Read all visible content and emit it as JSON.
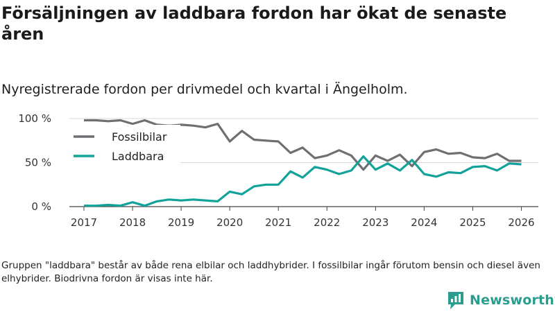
{
  "title": "Försäljningen av laddbara fordon har ökat de senaste åren",
  "subtitle": "Nyregistrerade fordon per drivmedel och kvartal i Ängelholm.",
  "footnote": "Gruppen \"laddbara\" består av både rena elbilar och laddhybrider. I fossilbilar ingår förutom bensin och diesel även elhybrider. Biodrivna fordon är visas inte här.",
  "brand": {
    "name": "Newsworthy",
    "color": "#2a9d8f"
  },
  "chart_data": {
    "type": "line",
    "title": "Försäljningen av laddbara fordon har ökat de senaste åren",
    "xlabel": "",
    "ylabel": "",
    "x_range": [
      2016.7,
      2026.35
    ],
    "ylim": [
      0,
      100
    ],
    "y_ticks": [
      {
        "value": 0,
        "label": "0 %"
      },
      {
        "value": 50,
        "label": "50 %"
      },
      {
        "value": 100,
        "label": "100 %"
      }
    ],
    "x_ticks": [
      {
        "value": 2017,
        "label": "2017"
      },
      {
        "value": 2018,
        "label": "2018"
      },
      {
        "value": 2019,
        "label": "2019"
      },
      {
        "value": 2020,
        "label": "2020"
      },
      {
        "value": 2021,
        "label": "2021"
      },
      {
        "value": 2022,
        "label": "2022"
      },
      {
        "value": 2023,
        "label": "2023"
      },
      {
        "value": 2024,
        "label": "2024"
      },
      {
        "value": 2025,
        "label": "2025"
      },
      {
        "value": 2026,
        "label": "2026"
      }
    ],
    "grid": "horizontal",
    "legend_position": "top-left",
    "x": [
      2017.0,
      2017.25,
      2017.5,
      2017.75,
      2018.0,
      2018.25,
      2018.5,
      2018.75,
      2019.0,
      2019.25,
      2019.5,
      2019.75,
      2020.0,
      2020.25,
      2020.5,
      2020.75,
      2021.0,
      2021.25,
      2021.5,
      2021.75,
      2022.0,
      2022.25,
      2022.5,
      2022.75,
      2023.0,
      2023.25,
      2023.5,
      2023.75,
      2024.0,
      2024.25,
      2024.5,
      2024.75,
      2025.0,
      2025.25,
      2025.5,
      2025.75,
      2026.0
    ],
    "series": [
      {
        "name": "Fossilbilar",
        "color": "#6e6e73",
        "values": [
          98,
          98,
          97,
          98,
          94,
          98,
          93,
          92,
          93,
          92,
          90,
          94,
          74,
          86,
          76,
          75,
          74,
          61,
          67,
          55,
          58,
          64,
          58,
          42,
          58,
          52,
          59,
          46,
          62,
          65,
          60,
          61,
          56,
          55,
          60,
          52,
          52
        ]
      },
      {
        "name": "Laddbara",
        "color": "#11a29a",
        "values": [
          1,
          1,
          2,
          1,
          5,
          1,
          6,
          8,
          7,
          8,
          7,
          6,
          17,
          14,
          23,
          25,
          25,
          40,
          33,
          45,
          42,
          37,
          41,
          57,
          42,
          49,
          41,
          53,
          37,
          34,
          39,
          38,
          45,
          46,
          41,
          49,
          48
        ]
      }
    ]
  }
}
